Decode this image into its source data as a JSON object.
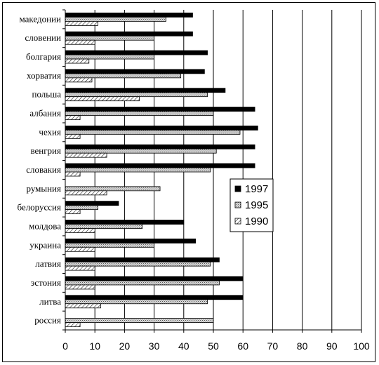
{
  "chart_data": {
    "type": "bar",
    "orientation": "horizontal",
    "title": "",
    "xlabel": "",
    "ylabel": "",
    "xlim": [
      0,
      100
    ],
    "x_ticks": [
      "0",
      "10",
      "20",
      "30",
      "40",
      "50",
      "60",
      "70",
      "80",
      "90",
      "100"
    ],
    "grid": "vertical",
    "legend_position": "right",
    "categories": [
      "македонии",
      "словении",
      "болгария",
      "хорватия",
      "польша",
      "албания",
      "чехия",
      "венгрия",
      "словакия",
      "румыния",
      "белоруссия",
      "молдова",
      "украина",
      "латвия",
      "эстония",
      "литва",
      "россия"
    ],
    "series": [
      {
        "name": "1997",
        "color": "#000000",
        "pattern": "solid",
        "values": [
          43,
          43,
          48,
          47,
          54,
          64,
          65,
          64,
          64,
          null,
          18,
          40,
          44,
          52,
          60,
          60,
          null
        ]
      },
      {
        "name": "1995",
        "color": "#c0c0c0",
        "pattern": "stipple",
        "values": [
          34,
          30,
          30,
          39,
          48,
          50,
          59,
          51,
          49,
          32,
          11,
          26,
          30,
          49,
          52,
          48,
          50
        ]
      },
      {
        "name": "1990",
        "color": "#ffffff",
        "pattern": "hatch",
        "values": [
          11,
          10,
          8,
          9,
          25,
          5,
          5,
          14,
          5,
          14,
          5,
          10,
          10,
          10,
          10,
          12,
          5
        ]
      }
    ]
  }
}
